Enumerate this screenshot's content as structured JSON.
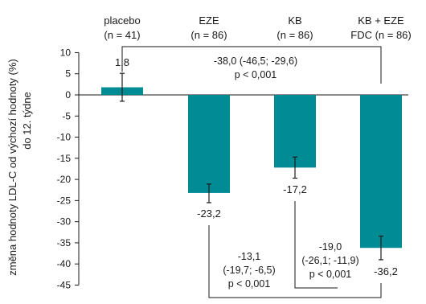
{
  "chart_data": {
    "type": "bar",
    "ylabel": "změna hodnoty LDL-C od výchozí hodnoty (%)",
    "ylabel2": "do 12. týdne",
    "ylim": [
      -45,
      10
    ],
    "yticks": [
      10,
      5,
      0,
      -5,
      -10,
      -15,
      -20,
      -25,
      -30,
      -35,
      -40,
      -45
    ],
    "bar_color": "#008b95",
    "categories": [
      {
        "line1": "placebo",
        "line2": "(n = 41)"
      },
      {
        "line1": "EZE",
        "line2": "(n = 86)"
      },
      {
        "line1": "KB",
        "line2": "(n = 86)"
      },
      {
        "line1": "KB + EZE",
        "line2": "FDC (n = 86)"
      }
    ],
    "values": [
      1.8,
      -23.2,
      -17.2,
      -36.2
    ],
    "value_labels": [
      "1,8",
      "-23,2",
      "-17,2",
      "-36,2"
    ],
    "error_bars": [
      {
        "low": -1.5,
        "high": 5.1
      },
      {
        "low": -25.5,
        "high": -21.1
      },
      {
        "low": -19.7,
        "high": -14.7
      },
      {
        "low": -39.0,
        "high": -33.4
      }
    ],
    "comparisons": [
      {
        "from": 0,
        "to": 3,
        "lines": [
          "-38,0 (-46,5; -29,6)",
          "p < 0,001"
        ]
      },
      {
        "from": 1,
        "to": 3,
        "lines": [
          "-13,1",
          "(-19,7; -6,5)",
          "p < 0,001"
        ]
      },
      {
        "from": 2,
        "to": 3,
        "lines": [
          "-19,0",
          "(-26,1; -11,9)",
          "p < 0,001"
        ]
      }
    ]
  }
}
